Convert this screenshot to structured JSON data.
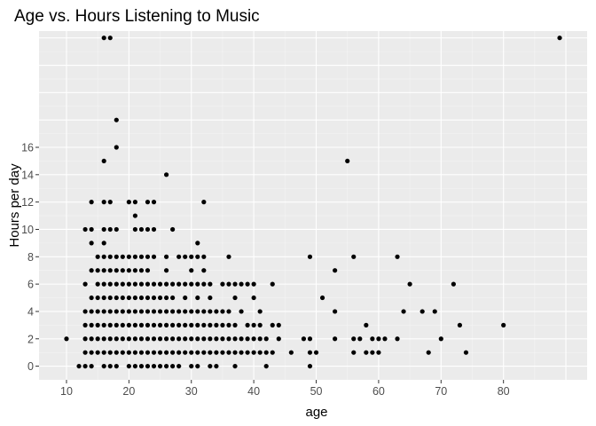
{
  "chart_data": {
    "type": "scatter",
    "title": "Age vs. Hours Listening to Music",
    "xlabel": "age",
    "ylabel": "Hours per day",
    "xlim": [
      5.6,
      93.4
    ],
    "ylim": [
      -1,
      24.5
    ],
    "x_ticks": [
      10,
      20,
      30,
      40,
      50,
      60,
      70,
      80
    ],
    "y_ticks": [
      0,
      2,
      4,
      6,
      8,
      10,
      12,
      14,
      16
    ],
    "x_tick_labels": [
      "10",
      "20",
      "30",
      "40",
      "50",
      "60",
      "70",
      "80"
    ],
    "y_tick_labels": [
      "0",
      "2",
      "4",
      "6",
      "8",
      "10",
      "12",
      "14",
      "16"
    ],
    "grid": true,
    "point_color": "#000000",
    "panel_color": "#ebebeb",
    "points": [
      [
        10,
        2
      ],
      [
        12,
        0
      ],
      [
        13,
        0
      ],
      [
        13,
        1
      ],
      [
        13,
        2
      ],
      [
        13,
        3
      ],
      [
        13,
        4
      ],
      [
        13,
        6
      ],
      [
        13,
        10
      ],
      [
        14,
        0
      ],
      [
        14,
        1
      ],
      [
        14,
        2
      ],
      [
        14,
        3
      ],
      [
        14,
        4
      ],
      [
        14,
        5
      ],
      [
        14,
        7
      ],
      [
        14,
        9
      ],
      [
        14,
        10
      ],
      [
        14,
        12
      ],
      [
        15,
        1
      ],
      [
        15,
        2
      ],
      [
        15,
        3
      ],
      [
        15,
        4
      ],
      [
        15,
        5
      ],
      [
        15,
        6
      ],
      [
        15,
        7
      ],
      [
        15,
        8
      ],
      [
        16,
        0
      ],
      [
        16,
        1
      ],
      [
        16,
        2
      ],
      [
        16,
        3
      ],
      [
        16,
        4
      ],
      [
        16,
        5
      ],
      [
        16,
        6
      ],
      [
        16,
        7
      ],
      [
        16,
        8
      ],
      [
        16,
        9
      ],
      [
        16,
        10
      ],
      [
        16,
        12
      ],
      [
        16,
        15
      ],
      [
        16,
        24
      ],
      [
        17,
        0
      ],
      [
        17,
        1
      ],
      [
        17,
        2
      ],
      [
        17,
        3
      ],
      [
        17,
        4
      ],
      [
        17,
        5
      ],
      [
        17,
        6
      ],
      [
        17,
        7
      ],
      [
        17,
        8
      ],
      [
        17,
        10
      ],
      [
        17,
        12
      ],
      [
        17,
        24
      ],
      [
        18,
        0
      ],
      [
        18,
        1
      ],
      [
        18,
        2
      ],
      [
        18,
        3
      ],
      [
        18,
        4
      ],
      [
        18,
        5
      ],
      [
        18,
        6
      ],
      [
        18,
        7
      ],
      [
        18,
        8
      ],
      [
        18,
        10
      ],
      [
        18,
        16
      ],
      [
        18,
        18
      ],
      [
        19,
        1
      ],
      [
        19,
        2
      ],
      [
        19,
        3
      ],
      [
        19,
        4
      ],
      [
        19,
        5
      ],
      [
        19,
        6
      ],
      [
        19,
        7
      ],
      [
        19,
        8
      ],
      [
        20,
        0
      ],
      [
        20,
        1
      ],
      [
        20,
        2
      ],
      [
        20,
        3
      ],
      [
        20,
        4
      ],
      [
        20,
        5
      ],
      [
        20,
        6
      ],
      [
        20,
        7
      ],
      [
        20,
        8
      ],
      [
        20,
        12
      ],
      [
        21,
        0
      ],
      [
        21,
        1
      ],
      [
        21,
        2
      ],
      [
        21,
        3
      ],
      [
        21,
        4
      ],
      [
        21,
        5
      ],
      [
        21,
        6
      ],
      [
        21,
        7
      ],
      [
        21,
        8
      ],
      [
        21,
        10
      ],
      [
        21,
        11
      ],
      [
        21,
        12
      ],
      [
        22,
        0
      ],
      [
        22,
        1
      ],
      [
        22,
        2
      ],
      [
        22,
        3
      ],
      [
        22,
        4
      ],
      [
        22,
        5
      ],
      [
        22,
        6
      ],
      [
        22,
        7
      ],
      [
        22,
        8
      ],
      [
        22,
        10
      ],
      [
        23,
        0
      ],
      [
        23,
        1
      ],
      [
        23,
        2
      ],
      [
        23,
        3
      ],
      [
        23,
        4
      ],
      [
        23,
        5
      ],
      [
        23,
        6
      ],
      [
        23,
        7
      ],
      [
        23,
        8
      ],
      [
        23,
        10
      ],
      [
        23,
        12
      ],
      [
        24,
        0
      ],
      [
        24,
        1
      ],
      [
        24,
        2
      ],
      [
        24,
        3
      ],
      [
        24,
        4
      ],
      [
        24,
        5
      ],
      [
        24,
        6
      ],
      [
        24,
        8
      ],
      [
        24,
        10
      ],
      [
        24,
        12
      ],
      [
        25,
        0
      ],
      [
        25,
        1
      ],
      [
        25,
        2
      ],
      [
        25,
        3
      ],
      [
        25,
        4
      ],
      [
        25,
        5
      ],
      [
        25,
        6
      ],
      [
        26,
        0
      ],
      [
        26,
        1
      ],
      [
        26,
        2
      ],
      [
        26,
        3
      ],
      [
        26,
        4
      ],
      [
        26,
        5
      ],
      [
        26,
        6
      ],
      [
        26,
        7
      ],
      [
        26,
        8
      ],
      [
        26,
        14
      ],
      [
        27,
        0
      ],
      [
        27,
        1
      ],
      [
        27,
        2
      ],
      [
        27,
        3
      ],
      [
        27,
        4
      ],
      [
        27,
        5
      ],
      [
        27,
        6
      ],
      [
        27,
        10
      ],
      [
        28,
        0
      ],
      [
        28,
        1
      ],
      [
        28,
        2
      ],
      [
        28,
        3
      ],
      [
        28,
        4
      ],
      [
        28,
        6
      ],
      [
        28,
        8
      ],
      [
        29,
        1
      ],
      [
        29,
        2
      ],
      [
        29,
        3
      ],
      [
        29,
        4
      ],
      [
        29,
        5
      ],
      [
        29,
        6
      ],
      [
        29,
        8
      ],
      [
        30,
        0
      ],
      [
        30,
        1
      ],
      [
        30,
        2
      ],
      [
        30,
        3
      ],
      [
        30,
        4
      ],
      [
        30,
        6
      ],
      [
        30,
        7
      ],
      [
        30,
        8
      ],
      [
        31,
        0
      ],
      [
        31,
        1
      ],
      [
        31,
        2
      ],
      [
        31,
        3
      ],
      [
        31,
        4
      ],
      [
        31,
        5
      ],
      [
        31,
        6
      ],
      [
        31,
        8
      ],
      [
        31,
        9
      ],
      [
        32,
        1
      ],
      [
        32,
        2
      ],
      [
        32,
        3
      ],
      [
        32,
        4
      ],
      [
        32,
        6
      ],
      [
        32,
        7
      ],
      [
        32,
        8
      ],
      [
        32,
        12
      ],
      [
        33,
        0
      ],
      [
        33,
        1
      ],
      [
        33,
        2
      ],
      [
        33,
        3
      ],
      [
        33,
        4
      ],
      [
        33,
        5
      ],
      [
        33,
        6
      ],
      [
        34,
        0
      ],
      [
        34,
        1
      ],
      [
        34,
        2
      ],
      [
        34,
        3
      ],
      [
        34,
        4
      ],
      [
        35,
        1
      ],
      [
        35,
        2
      ],
      [
        35,
        3
      ],
      [
        35,
        4
      ],
      [
        35,
        6
      ],
      [
        36,
        1
      ],
      [
        36,
        2
      ],
      [
        36,
        3
      ],
      [
        36,
        4
      ],
      [
        36,
        6
      ],
      [
        36,
        8
      ],
      [
        37,
        0
      ],
      [
        37,
        1
      ],
      [
        37,
        2
      ],
      [
        37,
        3
      ],
      [
        37,
        5
      ],
      [
        37,
        6
      ],
      [
        38,
        1
      ],
      [
        38,
        2
      ],
      [
        38,
        4
      ],
      [
        38,
        6
      ],
      [
        39,
        1
      ],
      [
        39,
        2
      ],
      [
        39,
        3
      ],
      [
        39,
        6
      ],
      [
        40,
        1
      ],
      [
        40,
        2
      ],
      [
        40,
        3
      ],
      [
        40,
        5
      ],
      [
        40,
        6
      ],
      [
        41,
        1
      ],
      [
        41,
        2
      ],
      [
        41,
        3
      ],
      [
        41,
        4
      ],
      [
        42,
        0
      ],
      [
        42,
        1
      ],
      [
        42,
        2
      ],
      [
        43,
        1
      ],
      [
        43,
        3
      ],
      [
        43,
        6
      ],
      [
        44,
        2
      ],
      [
        44,
        3
      ],
      [
        46,
        1
      ],
      [
        48,
        2
      ],
      [
        49,
        0
      ],
      [
        49,
        1
      ],
      [
        49,
        2
      ],
      [
        49,
        8
      ],
      [
        50,
        1
      ],
      [
        51,
        5
      ],
      [
        53,
        2
      ],
      [
        53,
        4
      ],
      [
        53,
        7
      ],
      [
        55,
        15
      ],
      [
        56,
        1
      ],
      [
        56,
        2
      ],
      [
        56,
        8
      ],
      [
        57,
        2
      ],
      [
        58,
        1
      ],
      [
        58,
        3
      ],
      [
        59,
        1
      ],
      [
        59,
        2
      ],
      [
        60,
        1
      ],
      [
        60,
        2
      ],
      [
        61,
        2
      ],
      [
        63,
        2
      ],
      [
        63,
        8
      ],
      [
        64,
        4
      ],
      [
        65,
        6
      ],
      [
        67,
        4
      ],
      [
        68,
        1
      ],
      [
        69,
        4
      ],
      [
        70,
        2
      ],
      [
        72,
        6
      ],
      [
        73,
        3
      ],
      [
        74,
        1
      ],
      [
        80,
        3
      ],
      [
        89,
        24
      ]
    ]
  }
}
